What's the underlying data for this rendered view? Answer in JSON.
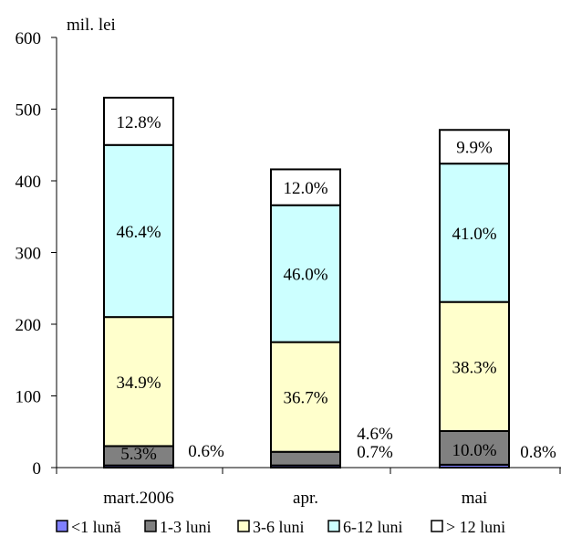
{
  "chart_data": {
    "type": "bar",
    "stacked": true,
    "title": "",
    "xlabel": "",
    "ylabel": "mil. lei",
    "ylim": [
      0,
      600
    ],
    "yticks": [
      0,
      100,
      200,
      300,
      400,
      500,
      600
    ],
    "grid": false,
    "legend_position": "bottom",
    "categories": [
      "mart.2006",
      "apr.",
      "mai"
    ],
    "series": [
      {
        "name": "<1 lună",
        "color": "#8080ff",
        "values": [
          3,
          3,
          4
        ],
        "labels": [
          "0.6%",
          "0.7%",
          "0.8%"
        ]
      },
      {
        "name": "1-3 luni",
        "color": "#808080",
        "values": [
          27,
          19,
          47
        ],
        "labels": [
          "5.3%",
          "4.6%",
          "10.0%"
        ]
      },
      {
        "name": "3-6 luni",
        "color": "#ffffcc",
        "values": [
          180,
          153,
          180
        ],
        "labels": [
          "34.9%",
          "36.7%",
          "38.3%"
        ]
      },
      {
        "name": "6-12 luni",
        "color": "#ccffff",
        "values": [
          240,
          191,
          193
        ],
        "labels": [
          "46.4%",
          "46.0%",
          "41.0%"
        ]
      },
      {
        "name": "> 12 luni",
        "color": "#ffffff",
        "values": [
          66,
          50,
          47
        ],
        "labels": [
          "12.8%",
          "12.0%",
          "9.9%"
        ]
      }
    ]
  }
}
